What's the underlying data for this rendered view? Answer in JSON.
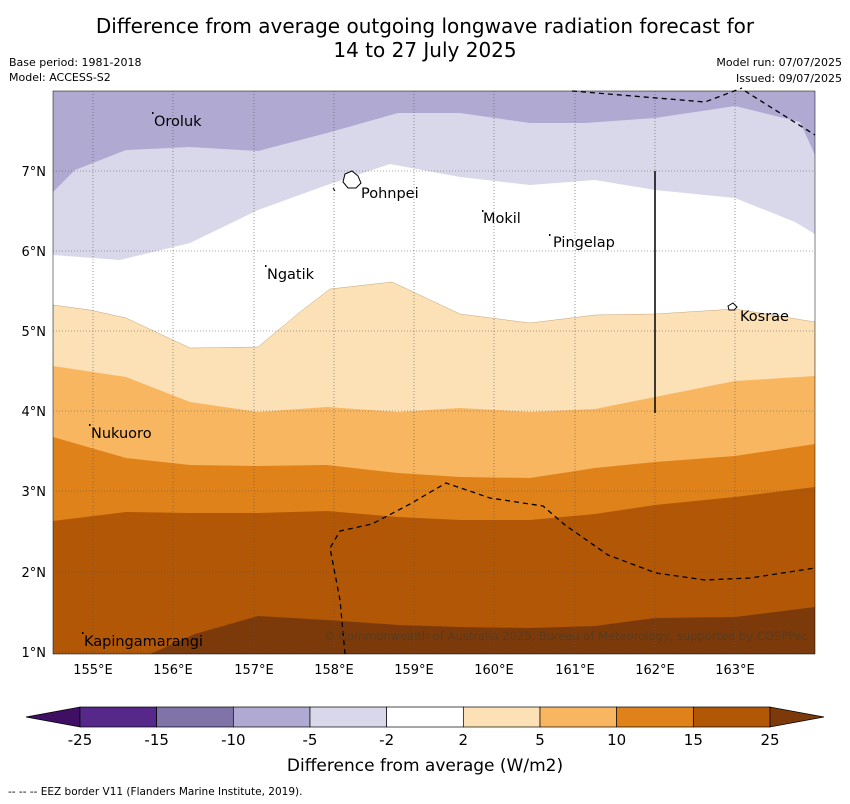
{
  "header": {
    "title_line1": "Difference from average outgoing longwave radiation forecast for",
    "title_line2": "14 to 27 July 2025",
    "base_period": "Base period: 1981-2018",
    "model": "Model: ACCESS-S2",
    "model_run": "Model run: 07/07/2025",
    "issued": "Issued: 09/07/2025"
  },
  "map": {
    "lat_labels": [
      "7°N",
      "6°N",
      "5°N",
      "4°N",
      "3°N",
      "2°N",
      "1°N"
    ],
    "lon_labels": [
      "155°E",
      "156°E",
      "157°E",
      "158°E",
      "159°E",
      "160°E",
      "161°E",
      "162°E",
      "163°E"
    ],
    "places": [
      {
        "name": "Oroluk"
      },
      {
        "name": "Pohnpei"
      },
      {
        "name": "Mokil"
      },
      {
        "name": "Pingelap"
      },
      {
        "name": "Ngatik"
      },
      {
        "name": "Kosrae"
      },
      {
        "name": "Nukuoro"
      },
      {
        "name": "Kapingamarangi"
      }
    ],
    "copyright": "© Commonwealth of Australia 2025, Bureau of Meteorology, supported by COSPPac"
  },
  "colorbar": {
    "ticks": [
      "-25",
      "-15",
      "-10",
      "-5",
      "-2",
      "2",
      "5",
      "10",
      "15",
      "25"
    ],
    "colors": [
      "#3f0f63",
      "#55288a",
      "#8073a8",
      "#b0a9d2",
      "#d8d8ea",
      "#ffffff",
      "#fce0b6",
      "#f9b660",
      "#e0821a",
      "#b25706",
      "#7c3a0a"
    ],
    "title": "Difference from average (W/m2)"
  },
  "footer": {
    "legend_text": "--  --  -- EEZ border V11 (Flanders Marine Institute, 2019)."
  }
}
